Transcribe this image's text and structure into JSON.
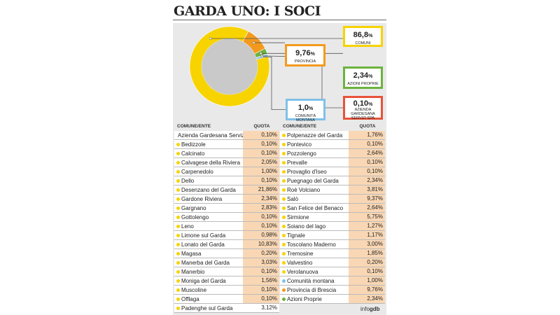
{
  "title": "GARDA UNO: I SOCI",
  "chart_data": {
    "type": "pie",
    "variant": "donut",
    "slices": [
      {
        "label": "PROVINCIA",
        "value": 9.76,
        "display": "9,76",
        "color": "#f39a1e"
      },
      {
        "label": "AZIONI PROPRIE",
        "value": 2.34,
        "display": "2,34",
        "color": "#6cb33f"
      },
      {
        "label": "AZIENDA GARDESANA SERVIZI SPA",
        "value": 0.1,
        "display": "0,10",
        "color": "#e8523a"
      },
      {
        "label": "COMUNITÀ MONTANA",
        "value": 1.0,
        "display": "1,0",
        "color": "#7fc1e8"
      },
      {
        "label": "COMUNI",
        "value": 86.8,
        "display": "86,8",
        "color": "#f7d300"
      }
    ],
    "pct_sign": "%"
  },
  "table": {
    "header_name": "COMUNE/ENTE",
    "header_quota": "QUOTA",
    "left": [
      {
        "name": "Azienda Gardesana Servizi Spa",
        "quota": "0,10%",
        "color": "#e8523a"
      },
      {
        "name": "Bedizzole",
        "quota": "0,10%",
        "color": "#f7d300"
      },
      {
        "name": "Calcinato",
        "quota": "0,10%",
        "color": "#f7d300"
      },
      {
        "name": "Calvagese della Riviera",
        "quota": "2,05%",
        "color": "#f7d300"
      },
      {
        "name": "Carpenedolo",
        "quota": "1,00%",
        "color": "#f7d300"
      },
      {
        "name": "Dello",
        "quota": "0,10%",
        "color": "#f7d300"
      },
      {
        "name": "Desenzano del Garda",
        "quota": "21,86%",
        "color": "#f7d300"
      },
      {
        "name": "Gardone Riviera",
        "quota": "2,34%",
        "color": "#f7d300"
      },
      {
        "name": "Gargnano",
        "quota": "2,83%",
        "color": "#f7d300"
      },
      {
        "name": "Gottolengo",
        "quota": "0,10%",
        "color": "#f7d300"
      },
      {
        "name": "Leno",
        "quota": "0,10%",
        "color": "#f7d300"
      },
      {
        "name": "Limone sul Garda",
        "quota": "0,98%",
        "color": "#f7d300"
      },
      {
        "name": "Lonato del Garda",
        "quota": "10,83%",
        "color": "#f7d300"
      },
      {
        "name": "Magasa",
        "quota": "0,20%",
        "color": "#f7d300"
      },
      {
        "name": "Manerba del Garda",
        "quota": "3,03%",
        "color": "#f7d300"
      },
      {
        "name": "Manerbio",
        "quota": "0,10%",
        "color": "#f7d300"
      },
      {
        "name": "Moniga del Garda",
        "quota": "1,56%",
        "color": "#f7d300"
      },
      {
        "name": "Muscoline",
        "quota": "0,10%",
        "color": "#f7d300"
      },
      {
        "name": "Offlaga",
        "quota": "0,10%",
        "color": "#f7d300"
      },
      {
        "name": "Padenghe sul Garda",
        "quota": "3,12%",
        "color": "#f7d300"
      }
    ],
    "right": [
      {
        "name": "Polpenazze del Garda",
        "quota": "1,76%",
        "color": "#f7d300"
      },
      {
        "name": "Pontevico",
        "quota": "0,10%",
        "color": "#f7d300"
      },
      {
        "name": "Pozzolengo",
        "quota": "2,64%",
        "color": "#f7d300"
      },
      {
        "name": "Prevalle",
        "quota": "0,10%",
        "color": "#f7d300"
      },
      {
        "name": "Provaglio d'Iseo",
        "quota": "0,10%",
        "color": "#f7d300"
      },
      {
        "name": "Puegnago del Garda",
        "quota": "2,34%",
        "color": "#f7d300"
      },
      {
        "name": "Roè Volciano",
        "quota": "3,81%",
        "color": "#f7d300"
      },
      {
        "name": "Salò",
        "quota": "9,37%",
        "color": "#f7d300"
      },
      {
        "name": "San Felice del Benaco",
        "quota": "2,64%",
        "color": "#f7d300"
      },
      {
        "name": "Sirmione",
        "quota": "5,75%",
        "color": "#f7d300"
      },
      {
        "name": "Soiano del lago",
        "quota": "1,27%",
        "color": "#f7d300"
      },
      {
        "name": "Tignale",
        "quota": "1,17%",
        "color": "#f7d300"
      },
      {
        "name": "Toscolano Maderno",
        "quota": "3,00%",
        "color": "#f7d300"
      },
      {
        "name": "Tremosine",
        "quota": "1,85%",
        "color": "#f7d300"
      },
      {
        "name": "Valvestino",
        "quota": "0,20%",
        "color": "#f7d300"
      },
      {
        "name": "Verolanuova",
        "quota": "0,10%",
        "color": "#f7d300"
      },
      {
        "name": "Comunità montana",
        "quota": "1,00%",
        "color": "#7fc1e8"
      },
      {
        "name": "Provincia di Brescia",
        "quota": "9,76%",
        "color": "#f39a1e"
      },
      {
        "name": "Azioni Proprie",
        "quota": "2,34%",
        "color": "#6cb33f"
      }
    ]
  },
  "credit": {
    "prefix": "info",
    "brand": "gdb"
  }
}
